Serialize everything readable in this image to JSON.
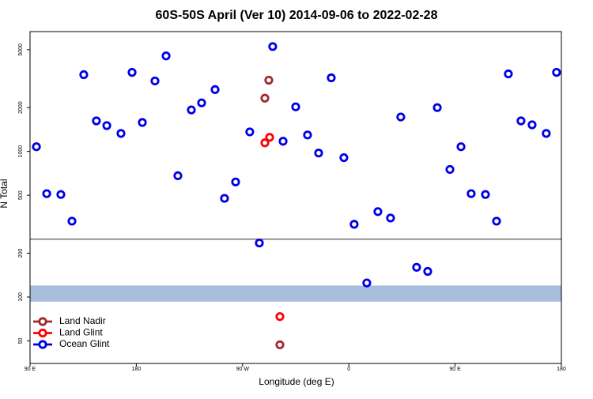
{
  "chart_data": {
    "type": "scatter",
    "title": "60S-50S April (Ver 10)   2014-09-06 to 2022-02-28",
    "xlabel": "Longitude (deg E)",
    "ylabel": "N Total",
    "xlim": [
      90,
      540
    ],
    "xticks": [
      {
        "value": 90,
        "label": "90 E"
      },
      180,
      {
        "value": 270,
        "label": "90 W"
      },
      {
        "value": 360,
        "label": "0"
      },
      {
        "value": 450,
        "label": "90 E"
      },
      {
        "value": 540,
        "label": "180"
      }
    ],
    "ylim": [
      35,
      6650
    ],
    "yscale": "log",
    "yticks": [
      50,
      100,
      200,
      500,
      1000,
      2000,
      5000
    ],
    "hline": {
      "y": 250,
      "color": "#555555"
    },
    "band": {
      "y": [
        93,
        120
      ],
      "color": "#a7bfdc"
    },
    "legend": "lower left",
    "series": [
      {
        "name": "Land Nadir",
        "color": "#a02a2e",
        "x": [
          292.2,
          288.9,
          301.6
        ],
        "values": [
          3085,
          2321,
          47
        ]
      },
      {
        "name": "Land Glint",
        "color": "#ff0000",
        "x": [
          292.9,
          288.9,
          301.6
        ],
        "values": [
          1250,
          1146,
          73.4
        ]
      },
      {
        "name": "Ocean Glint",
        "color": "#0000e6",
        "x": [
          95.4,
          104.1,
          116.1,
          125.5,
          135.5,
          146.2,
          155.0,
          167.0,
          176.4,
          185.1,
          195.8,
          205.2,
          215.2,
          226.6,
          235.3,
          246.7,
          254.7,
          264.1,
          276.1,
          284.2,
          295.5,
          304.3,
          315.0,
          325.0,
          334.4,
          345.1,
          355.8,
          364.5,
          375.2,
          384.6,
          395.3,
          404.0,
          417.4,
          426.8,
          434.9,
          445.6,
          455.0,
          463.6,
          475.7,
          485.1,
          495.1,
          505.8,
          515.2,
          527.2,
          535.9
        ],
        "values": [
          1077,
          513,
          506,
          332,
          3365,
          1621,
          1504,
          1329,
          3490,
          1581,
          3047,
          4528,
          681,
          1927,
          2155,
          2658,
          476,
          617,
          1362,
          235,
          5250,
          1175,
          2024,
          1297,
          975,
          3202,
          906,
          316,
          125,
          386,
          349,
          1724,
          160,
          150,
          2000,
          752,
          1077,
          513,
          506,
          332,
          3407,
          1621,
          1523,
          1329,
          3490
        ]
      }
    ]
  }
}
